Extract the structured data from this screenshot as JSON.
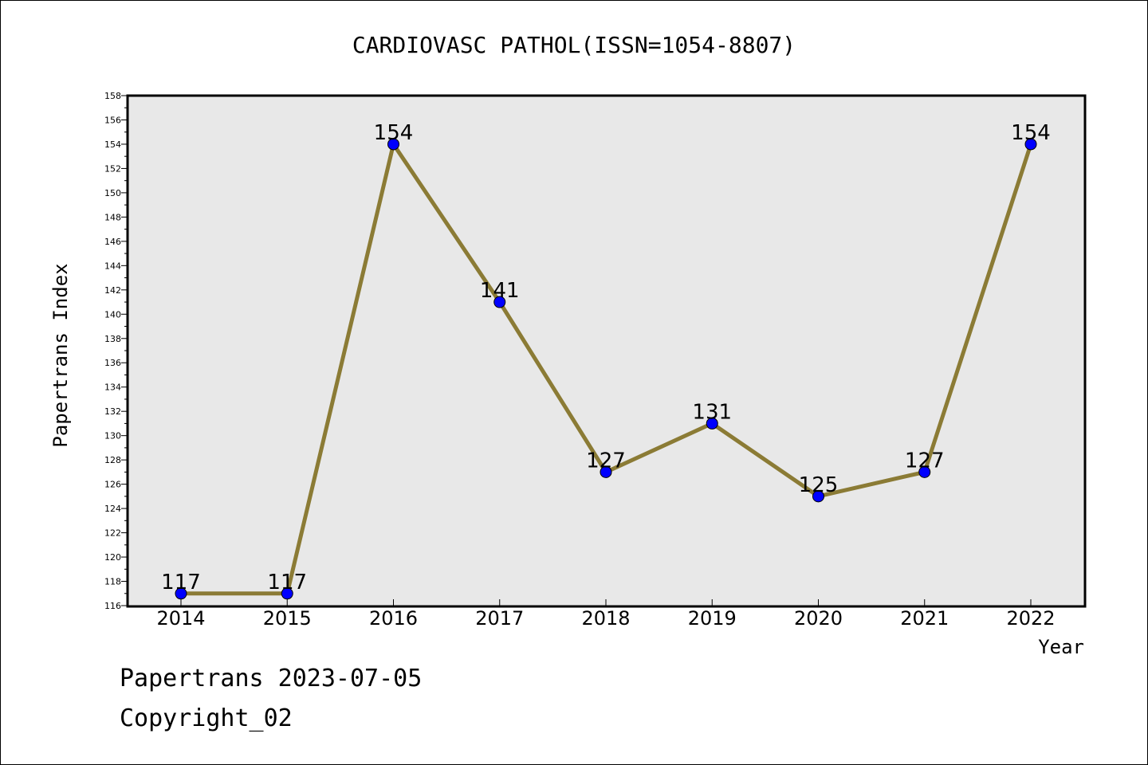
{
  "chart_data": {
    "type": "line",
    "title": "CARDIOVASC PATHOL(ISSN=1054-8807)",
    "xlabel": "Year",
    "ylabel": "Papertrans Index",
    "categories": [
      "2014",
      "2015",
      "2016",
      "2017",
      "2018",
      "2019",
      "2020",
      "2021",
      "2022"
    ],
    "series": [
      {
        "name": "Papertrans Index",
        "values": [
          117,
          117,
          154,
          141,
          127,
          131,
          125,
          127,
          154
        ]
      }
    ],
    "ylim": [
      116,
      158
    ],
    "ytick_step": 2,
    "grid": false,
    "colors": {
      "line": "#8b7b35",
      "marker": "#0000ff",
      "plot_bg": "#e8e8e8"
    }
  },
  "footer": {
    "date_line": "Papertrans 2023-07-05",
    "copyright": "Copyright_02"
  }
}
